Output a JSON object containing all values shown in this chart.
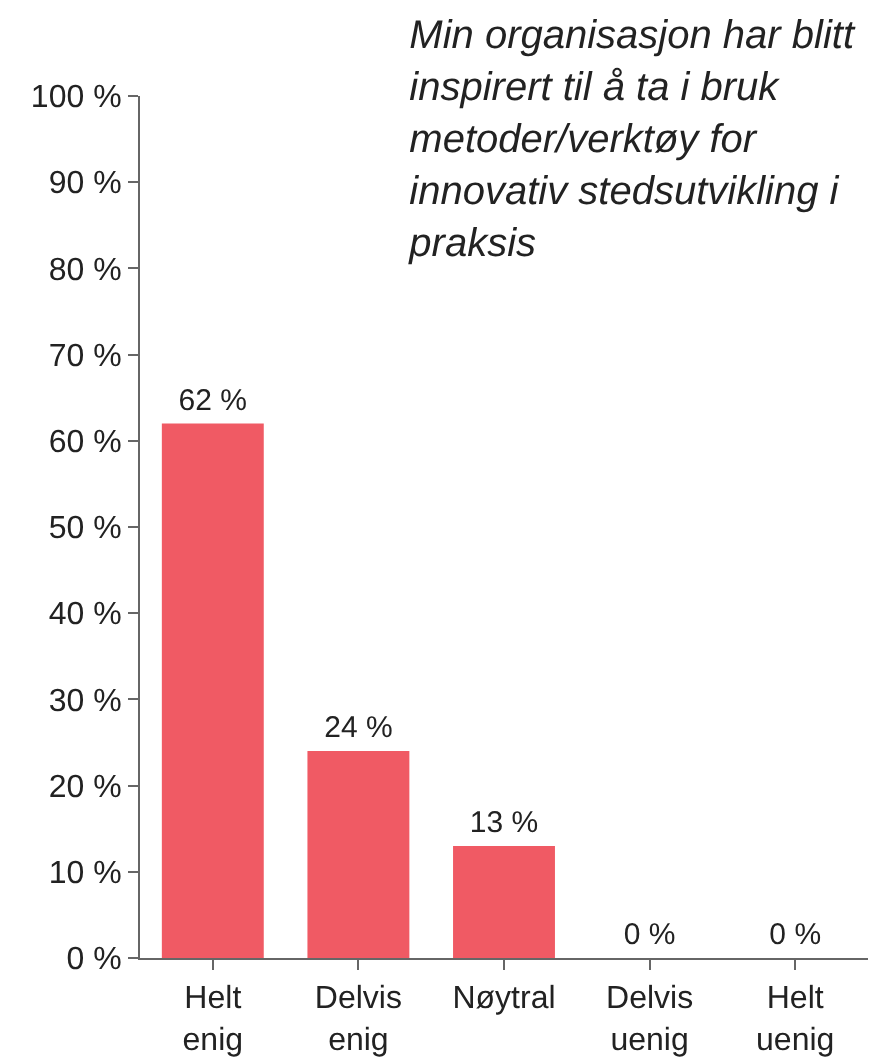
{
  "chart_data": {
    "type": "bar",
    "title": "Min organisasjon har blitt\ninspirert til å ta i bruk\nmetoder/verktøy for\ninnovativ stedsutvikling i\npraksis",
    "categories": [
      "Helt\nenig",
      "Delvis\nenig",
      "Nøytral",
      "Delvis\nuenig",
      "Helt\nuenig"
    ],
    "values": [
      62,
      24,
      13,
      0,
      0
    ],
    "color": "#f05a64",
    "value_labels": [
      "62 %",
      "24 %",
      "13 %",
      "0 %",
      "0 %"
    ],
    "ylim": [
      0,
      100
    ],
    "yticks": [
      {
        "value": 0,
        "label": "0 %"
      },
      {
        "value": 10,
        "label": "10 %"
      },
      {
        "value": 20,
        "label": "20 %"
      },
      {
        "value": 30,
        "label": "30 %"
      },
      {
        "value": 40,
        "label": "40 %"
      },
      {
        "value": 50,
        "label": "50 %"
      },
      {
        "value": 60,
        "label": "60 %"
      },
      {
        "value": 70,
        "label": "70 %"
      },
      {
        "value": 80,
        "label": "80 %"
      },
      {
        "value": 90,
        "label": "90 %"
      },
      {
        "value": 100,
        "label": "100 %"
      }
    ],
    "grid": false,
    "legend": false
  }
}
